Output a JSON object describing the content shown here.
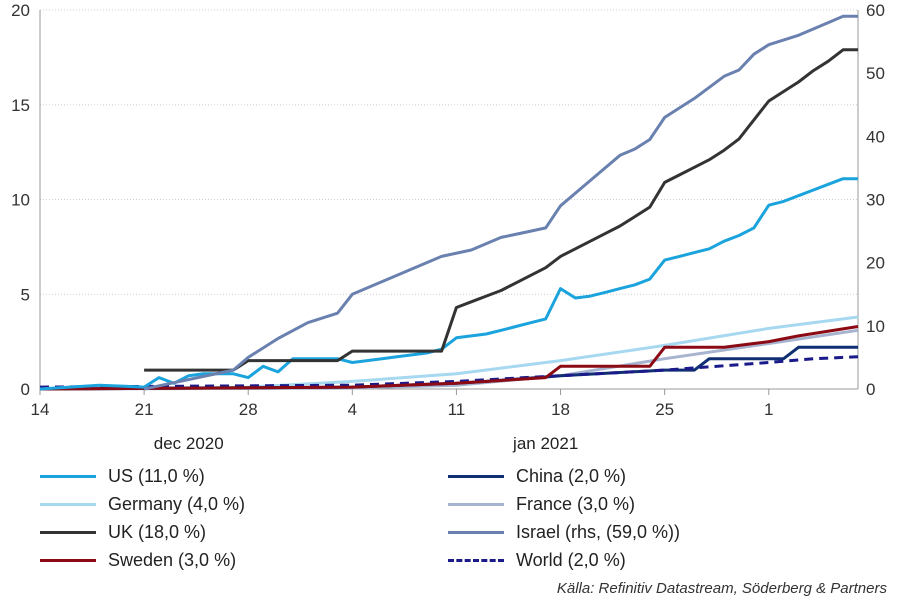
{
  "chart_data": {
    "type": "line",
    "title": "",
    "xlabel": "",
    "ylabel": "",
    "ylim": [
      0,
      20
    ],
    "y2lim": [
      0,
      60
    ],
    "yticks": [
      "0",
      "5",
      "10",
      "15",
      "20"
    ],
    "y2ticks": [
      "0",
      "10",
      "20",
      "30",
      "40",
      "50",
      "60"
    ],
    "grid": "horizontal",
    "legend_position": "bottom",
    "x_start": "2020-12-14",
    "x_end": "2021-02-07",
    "x_ticks": [
      {
        "date": "2020-12-14",
        "label": "14"
      },
      {
        "date": "2020-12-21",
        "label": "21"
      },
      {
        "date": "2020-12-28",
        "label": "28"
      },
      {
        "date": "2021-01-04",
        "label": "4"
      },
      {
        "date": "2021-01-11",
        "label": "11"
      },
      {
        "date": "2021-01-18",
        "label": "18"
      },
      {
        "date": "2021-01-25",
        "label": "25"
      },
      {
        "date": "2021-02-01",
        "label": "1"
      }
    ],
    "x_groups": [
      {
        "label": "dec 2020",
        "at": "2020-12-24"
      },
      {
        "label": "jan 2021",
        "at": "2021-01-17"
      }
    ],
    "series": [
      {
        "name": "US (11,0 %)",
        "color": "#1aa3dc",
        "dash": false,
        "axis": "left",
        "x": [
          "2020-12-14",
          "2020-12-18",
          "2020-12-21",
          "2020-12-22",
          "2020-12-23",
          "2020-12-24",
          "2020-12-25",
          "2020-12-26",
          "2020-12-27",
          "2020-12-28",
          "2020-12-29",
          "2020-12-30",
          "2020-12-31",
          "2021-01-01",
          "2021-01-02",
          "2021-01-03",
          "2021-01-04",
          "2021-01-05",
          "2021-01-06",
          "2021-01-07",
          "2021-01-08",
          "2021-01-09",
          "2021-01-10",
          "2021-01-11",
          "2021-01-12",
          "2021-01-13",
          "2021-01-14",
          "2021-01-15",
          "2021-01-16",
          "2021-01-17",
          "2021-01-18",
          "2021-01-19",
          "2021-01-20",
          "2021-01-21",
          "2021-01-22",
          "2021-01-23",
          "2021-01-24",
          "2021-01-25",
          "2021-01-26",
          "2021-01-27",
          "2021-01-28",
          "2021-01-29",
          "2021-01-30",
          "2021-01-31",
          "2021-02-01",
          "2021-02-02",
          "2021-02-03",
          "2021-02-04",
          "2021-02-05",
          "2021-02-06",
          "2021-02-07"
        ],
        "y": [
          0,
          0.2,
          0.1,
          0.6,
          0.3,
          0.7,
          0.8,
          0.8,
          0.8,
          0.6,
          1.2,
          0.9,
          1.6,
          1.6,
          1.6,
          1.6,
          1.4,
          1.5,
          1.6,
          1.7,
          1.8,
          1.9,
          2.1,
          2.7,
          2.8,
          2.9,
          3.1,
          3.3,
          3.5,
          3.7,
          5.3,
          4.8,
          4.9,
          5.1,
          5.3,
          5.5,
          5.8,
          6.8,
          7.0,
          7.2,
          7.4,
          7.8,
          8.1,
          8.5,
          9.7,
          9.9,
          10.2,
          10.5,
          10.8,
          11.1,
          11.1
        ]
      },
      {
        "name": "Germany (4,0 %)",
        "color": "#a6d8f0",
        "dash": false,
        "axis": "left",
        "x": [
          "2020-12-14",
          "2020-12-28",
          "2021-01-04",
          "2021-01-11",
          "2021-01-18",
          "2021-01-25",
          "2021-02-01",
          "2021-02-07"
        ],
        "y": [
          0,
          0.1,
          0.4,
          0.8,
          1.5,
          2.3,
          3.2,
          3.8
        ]
      },
      {
        "name": "UK (18,0 %)",
        "color": "#333333",
        "dash": false,
        "axis": "left",
        "x": [
          "2020-12-21",
          "2020-12-22",
          "2020-12-23",
          "2020-12-24",
          "2020-12-25",
          "2020-12-26",
          "2020-12-27",
          "2020-12-28",
          "2020-12-29",
          "2020-12-30",
          "2020-12-31",
          "2021-01-01",
          "2021-01-02",
          "2021-01-03",
          "2021-01-04",
          "2021-01-05",
          "2021-01-06",
          "2021-01-07",
          "2021-01-08",
          "2021-01-09",
          "2021-01-10",
          "2021-01-11",
          "2021-01-12",
          "2021-01-13",
          "2021-01-14",
          "2021-01-15",
          "2021-01-16",
          "2021-01-17",
          "2021-01-18",
          "2021-01-19",
          "2021-01-20",
          "2021-01-21",
          "2021-01-22",
          "2021-01-23",
          "2021-01-24",
          "2021-01-25",
          "2021-01-26",
          "2021-01-27",
          "2021-01-28",
          "2021-01-29",
          "2021-01-30",
          "2021-01-31",
          "2021-02-01",
          "2021-02-02",
          "2021-02-03",
          "2021-02-04",
          "2021-02-05",
          "2021-02-06",
          "2021-02-07"
        ],
        "y": [
          1.0,
          1.0,
          1.0,
          1.0,
          1.0,
          1.0,
          1.0,
          1.5,
          1.5,
          1.5,
          1.5,
          1.5,
          1.5,
          1.5,
          2.0,
          2.0,
          2.0,
          2.0,
          2.0,
          2.0,
          2.0,
          4.3,
          4.6,
          4.9,
          5.2,
          5.6,
          6.0,
          6.4,
          7.0,
          7.4,
          7.8,
          8.2,
          8.6,
          9.1,
          9.6,
          10.9,
          11.3,
          11.7,
          12.1,
          12.6,
          13.2,
          14.2,
          15.2,
          15.7,
          16.2,
          16.8,
          17.3,
          17.9,
          17.9
        ]
      },
      {
        "name": "Sweden (3,0 %)",
        "color": "#8b0a14",
        "dash": false,
        "axis": "left",
        "x": [
          "2020-12-14",
          "2021-01-04",
          "2021-01-11",
          "2021-01-17",
          "2021-01-18",
          "2021-01-24",
          "2021-01-25",
          "2021-01-29",
          "2021-01-31",
          "2021-02-01",
          "2021-02-03",
          "2021-02-07"
        ],
        "y": [
          0,
          0.1,
          0.3,
          0.6,
          1.2,
          1.2,
          2.2,
          2.2,
          2.4,
          2.5,
          2.8,
          3.3
        ]
      },
      {
        "name": "China (2,0 %)",
        "color": "#0f2f72",
        "dash": false,
        "axis": "left",
        "x": [
          "2020-12-14",
          "2021-01-04",
          "2021-01-11",
          "2021-01-13",
          "2021-01-18",
          "2021-01-25",
          "2021-01-27",
          "2021-01-28",
          "2021-02-02",
          "2021-02-03",
          "2021-02-07"
        ],
        "y": [
          0,
          0.1,
          0.3,
          0.4,
          0.7,
          1.0,
          1.0,
          1.6,
          1.6,
          2.2,
          2.2
        ]
      },
      {
        "name": "France (3,0 %)",
        "color": "#a6b4cf",
        "dash": false,
        "axis": "left",
        "x": [
          "2020-12-14",
          "2021-01-04",
          "2021-01-11",
          "2021-01-18",
          "2021-01-25",
          "2021-02-01",
          "2021-02-07"
        ],
        "y": [
          0,
          0.05,
          0.2,
          0.7,
          1.6,
          2.4,
          3.1
        ]
      },
      {
        "name": "Israel (rhs, (59,0 %))",
        "color": "#6a81b0",
        "dash": false,
        "axis": "right",
        "x": [
          "2020-12-21",
          "2020-12-23",
          "2020-12-25",
          "2020-12-27",
          "2020-12-28",
          "2020-12-30",
          "2021-01-01",
          "2021-01-03",
          "2021-01-04",
          "2021-01-06",
          "2021-01-08",
          "2021-01-10",
          "2021-01-12",
          "2021-01-14",
          "2021-01-16",
          "2021-01-17",
          "2021-01-18",
          "2021-01-20",
          "2021-01-22",
          "2021-01-23",
          "2021-01-24",
          "2021-01-25",
          "2021-01-27",
          "2021-01-29",
          "2021-01-30",
          "2021-01-31",
          "2021-02-01",
          "2021-02-03",
          "2021-02-05",
          "2021-02-06",
          "2021-02-07"
        ],
        "y": [
          0,
          1,
          2,
          3,
          5,
          8,
          10.5,
          12,
          15,
          17,
          19,
          21,
          22,
          24,
          25,
          25.5,
          29,
          33,
          37,
          38,
          39.5,
          43,
          46,
          49.5,
          50.5,
          53,
          54.5,
          56,
          58,
          59,
          59
        ]
      },
      {
        "name": "World (2,0 %)",
        "color": "#1a1a8a",
        "dash": true,
        "axis": "left",
        "x": [
          "2020-12-14",
          "2021-01-04",
          "2021-01-11",
          "2021-01-18",
          "2021-01-25",
          "2021-02-01",
          "2021-02-04",
          "2021-02-07"
        ],
        "y": [
          0.1,
          0.2,
          0.4,
          0.7,
          1.0,
          1.4,
          1.6,
          1.7
        ]
      }
    ]
  },
  "legend_order": [
    0,
    4,
    1,
    5,
    2,
    6,
    3,
    7
  ],
  "source": "Källa: Refinitiv Datastream, Söderberg & Partners"
}
